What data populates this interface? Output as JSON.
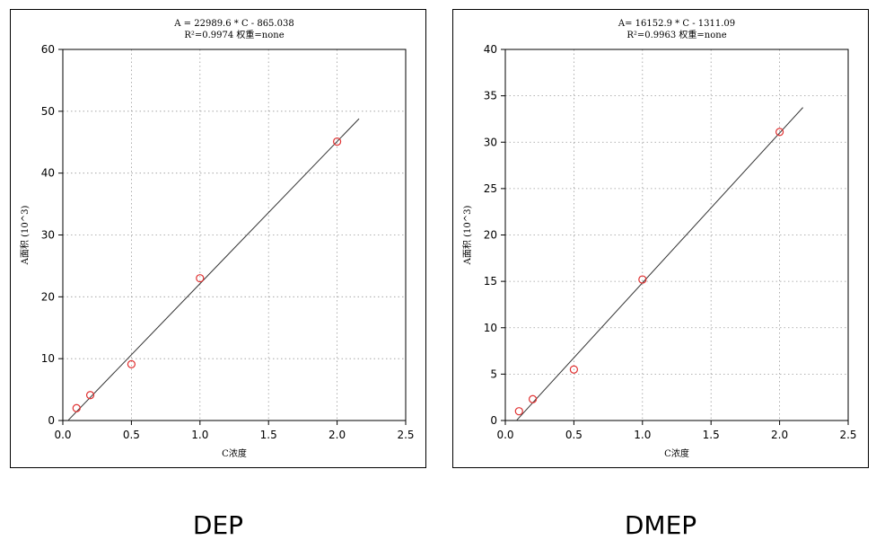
{
  "captions": [
    "DEP",
    "DMEP"
  ],
  "style": {
    "point_color": "#e03030",
    "line_color": "#333333",
    "grid_color": "#999999"
  },
  "chart_data": [
    {
      "type": "scatter",
      "equation": "A =  22989.6 * C - 865.038",
      "r2": "R²=0.9974 权重=none",
      "xlabel": "C浓度",
      "ylabel": "A面积 (10^3)",
      "xlim": [
        0,
        2.5
      ],
      "ylim": [
        0,
        60
      ],
      "xticks": [
        "0.0",
        "0.5",
        "1.0",
        "1.5",
        "2.0",
        "2.5"
      ],
      "yticks": [
        "0",
        "10",
        "20",
        "30",
        "40",
        "50",
        "60"
      ],
      "grid": true,
      "points": {
        "x": [
          0.1,
          0.2,
          0.5,
          1.0,
          2.0
        ],
        "y": [
          2.0,
          4.1,
          9.1,
          23.0,
          45.1
        ]
      },
      "fit": {
        "slope": 22.9896,
        "intercept": -0.865038,
        "x_range": [
          0.038,
          2.16
        ]
      }
    },
    {
      "type": "scatter",
      "equation": "A= 16152.9 * C - 1311.09",
      "r2": "R²=0.9963 权重=none",
      "xlabel": "C浓度",
      "ylabel": "A面积 (10^3)",
      "xlim": [
        0,
        2.5
      ],
      "ylim": [
        0,
        40
      ],
      "xticks": [
        "0.0",
        "0.5",
        "1.0",
        "1.5",
        "2.0",
        "2.5"
      ],
      "yticks": [
        "0",
        "5",
        "10",
        "15",
        "20",
        "25",
        "30",
        "35",
        "40"
      ],
      "grid": true,
      "points": {
        "x": [
          0.1,
          0.2,
          0.5,
          1.0,
          2.0
        ],
        "y": [
          1.0,
          2.3,
          5.5,
          15.2,
          31.1
        ]
      },
      "fit": {
        "slope": 16.1529,
        "intercept": -1.31109,
        "x_range": [
          0.081,
          2.17
        ]
      }
    }
  ]
}
